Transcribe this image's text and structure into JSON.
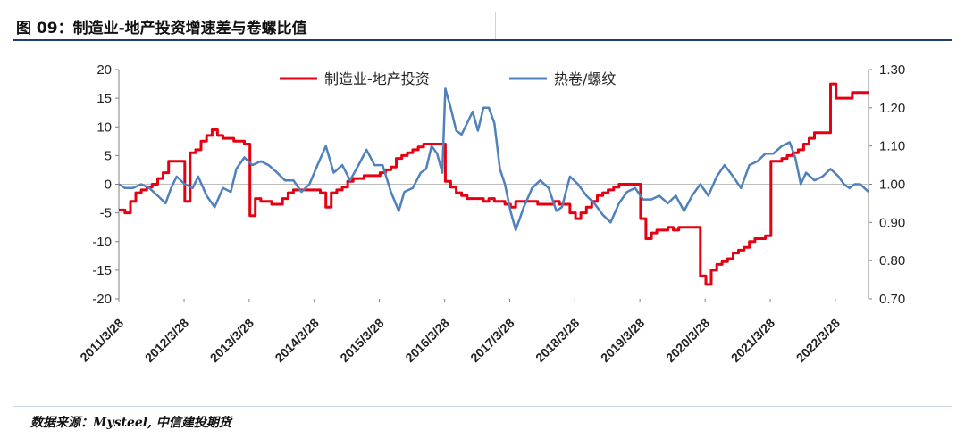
{
  "header": {
    "title": "图 09：制造业-地产投资增速差与卷螺比值"
  },
  "footer": {
    "source": "数据来源：Mysteel, 中信建投期货"
  },
  "chart_data": {
    "type": "line",
    "title": "图 09：制造业-地产投资增速差与卷螺比值",
    "legend_position": "top",
    "grid": false,
    "x_tick_labels": [
      "2011/3/28",
      "2012/3/28",
      "2013/3/28",
      "2014/3/28",
      "2015/3/28",
      "2016/3/28",
      "2017/3/28",
      "2018/3/28",
      "2019/3/28",
      "2020/3/28",
      "2021/3/28",
      "2022/3/28"
    ],
    "xlim": [
      "2011-03-28",
      "2022-09-30"
    ],
    "left_axis": {
      "ylim": [
        -20,
        20
      ],
      "ticks": [
        "20",
        "15",
        "10",
        "5",
        "0",
        "-5",
        "-10",
        "-15",
        "-20"
      ]
    },
    "right_axis": {
      "ylim": [
        0.7,
        1.3
      ],
      "ticks": [
        "1.30",
        "1.20",
        "1.10",
        "1.00",
        "0.90",
        "0.80",
        "0.70"
      ]
    },
    "series": [
      {
        "name": "制造业-地产投资",
        "axis": "left",
        "color": "#e60012",
        "step": true,
        "points": [
          [
            "2011-03-28",
            -4.5
          ],
          [
            "2011-05-01",
            -5.0
          ],
          [
            "2011-06-01",
            -3.0
          ],
          [
            "2011-07-01",
            -1.5
          ],
          [
            "2011-08-01",
            -1.0
          ],
          [
            "2011-09-01",
            -0.5
          ],
          [
            "2011-10-01",
            0.0
          ],
          [
            "2011-11-01",
            1.0
          ],
          [
            "2011-12-01",
            2.0
          ],
          [
            "2012-01-01",
            4.0
          ],
          [
            "2012-03-01",
            4.0
          ],
          [
            "2012-04-01",
            -3.0
          ],
          [
            "2012-05-01",
            5.5
          ],
          [
            "2012-06-01",
            6.0
          ],
          [
            "2012-07-01",
            7.5
          ],
          [
            "2012-08-01",
            8.5
          ],
          [
            "2012-09-01",
            9.5
          ],
          [
            "2012-10-01",
            8.5
          ],
          [
            "2012-11-01",
            8.0
          ],
          [
            "2012-12-01",
            8.0
          ],
          [
            "2013-01-01",
            7.5
          ],
          [
            "2013-03-01",
            7.0
          ],
          [
            "2013-04-01",
            -5.5
          ],
          [
            "2013-05-01",
            -2.5
          ],
          [
            "2013-06-01",
            -3.0
          ],
          [
            "2013-07-01",
            -3.0
          ],
          [
            "2013-08-01",
            -3.5
          ],
          [
            "2013-09-01",
            -3.5
          ],
          [
            "2013-10-01",
            -2.5
          ],
          [
            "2013-11-01",
            -1.5
          ],
          [
            "2013-12-01",
            -1.0
          ],
          [
            "2014-01-01",
            -1.0
          ],
          [
            "2014-03-01",
            -1.0
          ],
          [
            "2014-04-01",
            -1.0
          ],
          [
            "2014-05-01",
            -1.5
          ],
          [
            "2014-06-01",
            -4.0
          ],
          [
            "2014-07-01",
            -1.5
          ],
          [
            "2014-08-01",
            -1.0
          ],
          [
            "2014-09-01",
            -0.5
          ],
          [
            "2014-10-01",
            0.5
          ],
          [
            "2014-11-01",
            1.0
          ],
          [
            "2014-12-01",
            1.0
          ],
          [
            "2015-01-01",
            1.5
          ],
          [
            "2015-03-01",
            1.5
          ],
          [
            "2015-04-01",
            2.0
          ],
          [
            "2015-05-01",
            2.5
          ],
          [
            "2015-06-01",
            3.0
          ],
          [
            "2015-07-01",
            4.5
          ],
          [
            "2015-08-01",
            5.0
          ],
          [
            "2015-09-01",
            5.5
          ],
          [
            "2015-10-01",
            6.0
          ],
          [
            "2015-11-01",
            6.5
          ],
          [
            "2015-12-01",
            7.0
          ],
          [
            "2016-01-01",
            7.0
          ],
          [
            "2016-03-01",
            7.0
          ],
          [
            "2016-04-01",
            0.5
          ],
          [
            "2016-05-01",
            -0.5
          ],
          [
            "2016-06-01",
            -1.5
          ],
          [
            "2016-07-01",
            -2.0
          ],
          [
            "2016-08-01",
            -2.5
          ],
          [
            "2016-09-01",
            -2.5
          ],
          [
            "2016-10-01",
            -2.5
          ],
          [
            "2016-11-01",
            -3.0
          ],
          [
            "2016-12-01",
            -2.5
          ],
          [
            "2017-01-01",
            -3.0
          ],
          [
            "2017-03-01",
            -3.5
          ],
          [
            "2017-04-01",
            -4.0
          ],
          [
            "2017-05-01",
            -3.0
          ],
          [
            "2017-06-01",
            -3.0
          ],
          [
            "2017-07-01",
            -3.0
          ],
          [
            "2017-08-01",
            -3.0
          ],
          [
            "2017-09-01",
            -3.5
          ],
          [
            "2017-10-01",
            -3.5
          ],
          [
            "2017-11-01",
            -3.5
          ],
          [
            "2017-12-01",
            -3.0
          ],
          [
            "2018-01-01",
            -3.5
          ],
          [
            "2018-03-01",
            -5.0
          ],
          [
            "2018-04-01",
            -6.0
          ],
          [
            "2018-05-01",
            -5.0
          ],
          [
            "2018-06-01",
            -4.0
          ],
          [
            "2018-07-01",
            -3.0
          ],
          [
            "2018-08-01",
            -2.0
          ],
          [
            "2018-09-01",
            -1.5
          ],
          [
            "2018-10-01",
            -1.0
          ],
          [
            "2018-11-01",
            -0.5
          ],
          [
            "2018-12-01",
            0.0
          ],
          [
            "2019-01-01",
            0.0
          ],
          [
            "2019-03-01",
            0.0
          ],
          [
            "2019-04-01",
            -6.0
          ],
          [
            "2019-05-01",
            -9.5
          ],
          [
            "2019-06-01",
            -8.5
          ],
          [
            "2019-07-01",
            -8.0
          ],
          [
            "2019-08-01",
            -8.0
          ],
          [
            "2019-09-01",
            -7.5
          ],
          [
            "2019-10-01",
            -8.0
          ],
          [
            "2019-11-01",
            -7.5
          ],
          [
            "2019-12-01",
            -7.5
          ],
          [
            "2020-01-01",
            -7.5
          ],
          [
            "2020-03-01",
            -16.0
          ],
          [
            "2020-04-01",
            -17.5
          ],
          [
            "2020-05-01",
            -15.0
          ],
          [
            "2020-06-01",
            -14.0
          ],
          [
            "2020-07-01",
            -13.5
          ],
          [
            "2020-08-01",
            -13.0
          ],
          [
            "2020-09-01",
            -12.0
          ],
          [
            "2020-10-01",
            -11.5
          ],
          [
            "2020-11-01",
            -11.0
          ],
          [
            "2020-12-01",
            -10.0
          ],
          [
            "2021-01-01",
            -9.5
          ],
          [
            "2021-03-01",
            -9.0
          ],
          [
            "2021-04-01",
            4.0
          ],
          [
            "2021-05-01",
            4.0
          ],
          [
            "2021-06-01",
            4.5
          ],
          [
            "2021-07-01",
            5.0
          ],
          [
            "2021-08-01",
            5.5
          ],
          [
            "2021-09-01",
            6.0
          ],
          [
            "2021-10-01",
            7.0
          ],
          [
            "2021-11-01",
            8.0
          ],
          [
            "2021-12-01",
            9.0
          ],
          [
            "2022-01-01",
            9.0
          ],
          [
            "2022-03-01",
            17.5
          ],
          [
            "2022-04-01",
            15.0
          ],
          [
            "2022-05-01",
            15.0
          ],
          [
            "2022-06-01",
            15.0
          ],
          [
            "2022-07-01",
            16.0
          ],
          [
            "2022-09-30",
            16.0
          ]
        ]
      },
      {
        "name": "热卷/螺纹",
        "axis": "right",
        "color": "#4f81bd",
        "step": false,
        "points": [
          [
            "2011-03-28",
            1.0
          ],
          [
            "2011-05-01",
            0.99
          ],
          [
            "2011-06-15",
            0.99
          ],
          [
            "2011-08-01",
            1.0
          ],
          [
            "2011-09-15",
            0.99
          ],
          [
            "2011-11-01",
            0.97
          ],
          [
            "2011-12-15",
            0.95
          ],
          [
            "2012-01-15",
            0.99
          ],
          [
            "2012-02-15",
            1.02
          ],
          [
            "2012-04-01",
            1.0
          ],
          [
            "2012-05-15",
            0.99
          ],
          [
            "2012-06-15",
            1.02
          ],
          [
            "2012-08-01",
            0.97
          ],
          [
            "2012-09-15",
            0.94
          ],
          [
            "2012-11-01",
            0.99
          ],
          [
            "2012-12-15",
            0.98
          ],
          [
            "2013-01-15",
            1.04
          ],
          [
            "2013-03-01",
            1.07
          ],
          [
            "2013-04-15",
            1.05
          ],
          [
            "2013-06-01",
            1.06
          ],
          [
            "2013-07-15",
            1.05
          ],
          [
            "2013-09-01",
            1.03
          ],
          [
            "2013-10-15",
            1.01
          ],
          [
            "2013-12-01",
            1.01
          ],
          [
            "2014-01-15",
            0.98
          ],
          [
            "2014-03-01",
            1.0
          ],
          [
            "2014-04-15",
            1.05
          ],
          [
            "2014-06-01",
            1.1
          ],
          [
            "2014-07-15",
            1.03
          ],
          [
            "2014-09-01",
            1.05
          ],
          [
            "2014-10-15",
            1.01
          ],
          [
            "2014-12-01",
            1.05
          ],
          [
            "2015-01-15",
            1.09
          ],
          [
            "2015-03-01",
            1.05
          ],
          [
            "2015-04-15",
            1.05
          ],
          [
            "2015-06-01",
            0.98
          ],
          [
            "2015-07-15",
            0.93
          ],
          [
            "2015-08-15",
            0.98
          ],
          [
            "2015-10-01",
            0.99
          ],
          [
            "2015-11-15",
            1.03
          ],
          [
            "2015-12-15",
            1.04
          ],
          [
            "2016-01-15",
            1.1
          ],
          [
            "2016-02-15",
            1.08
          ],
          [
            "2016-03-15",
            1.03
          ],
          [
            "2016-04-01",
            1.25
          ],
          [
            "2016-05-01",
            1.2
          ],
          [
            "2016-06-01",
            1.14
          ],
          [
            "2016-07-01",
            1.13
          ],
          [
            "2016-08-01",
            1.16
          ],
          [
            "2016-09-01",
            1.19
          ],
          [
            "2016-10-01",
            1.14
          ],
          [
            "2016-11-01",
            1.2
          ],
          [
            "2016-12-01",
            1.2
          ],
          [
            "2017-01-01",
            1.16
          ],
          [
            "2017-02-01",
            1.04
          ],
          [
            "2017-03-01",
            1.0
          ],
          [
            "2017-04-01",
            0.93
          ],
          [
            "2017-05-01",
            0.88
          ],
          [
            "2017-06-15",
            0.94
          ],
          [
            "2017-08-01",
            0.99
          ],
          [
            "2017-09-15",
            1.01
          ],
          [
            "2017-11-01",
            0.99
          ],
          [
            "2017-12-15",
            0.93
          ],
          [
            "2018-01-15",
            0.94
          ],
          [
            "2018-03-01",
            1.02
          ],
          [
            "2018-04-15",
            1.0
          ],
          [
            "2018-06-01",
            0.97
          ],
          [
            "2018-07-15",
            0.95
          ],
          [
            "2018-09-01",
            0.92
          ],
          [
            "2018-10-15",
            0.9
          ],
          [
            "2018-12-01",
            0.95
          ],
          [
            "2019-01-15",
            0.98
          ],
          [
            "2019-03-01",
            0.99
          ],
          [
            "2019-04-15",
            0.96
          ],
          [
            "2019-06-01",
            0.96
          ],
          [
            "2019-07-15",
            0.97
          ],
          [
            "2019-09-01",
            0.95
          ],
          [
            "2019-10-15",
            0.97
          ],
          [
            "2019-12-01",
            0.93
          ],
          [
            "2020-01-15",
            0.97
          ],
          [
            "2020-03-01",
            1.0
          ],
          [
            "2020-04-15",
            0.97
          ],
          [
            "2020-06-01",
            1.02
          ],
          [
            "2020-07-15",
            1.05
          ],
          [
            "2020-09-01",
            1.02
          ],
          [
            "2020-10-15",
            0.99
          ],
          [
            "2020-12-01",
            1.05
          ],
          [
            "2021-01-15",
            1.06
          ],
          [
            "2021-03-01",
            1.08
          ],
          [
            "2021-04-15",
            1.08
          ],
          [
            "2021-06-01",
            1.1
          ],
          [
            "2021-07-15",
            1.11
          ],
          [
            "2021-08-15",
            1.07
          ],
          [
            "2021-09-15",
            1.0
          ],
          [
            "2021-10-15",
            1.03
          ],
          [
            "2021-12-01",
            1.01
          ],
          [
            "2022-01-15",
            1.02
          ],
          [
            "2022-03-01",
            1.04
          ],
          [
            "2022-04-15",
            1.02
          ],
          [
            "2022-05-15",
            1.0
          ],
          [
            "2022-06-15",
            0.99
          ],
          [
            "2022-07-15",
            1.0
          ],
          [
            "2022-08-15",
            1.0
          ],
          [
            "2022-09-30",
            0.98
          ]
        ]
      }
    ]
  }
}
